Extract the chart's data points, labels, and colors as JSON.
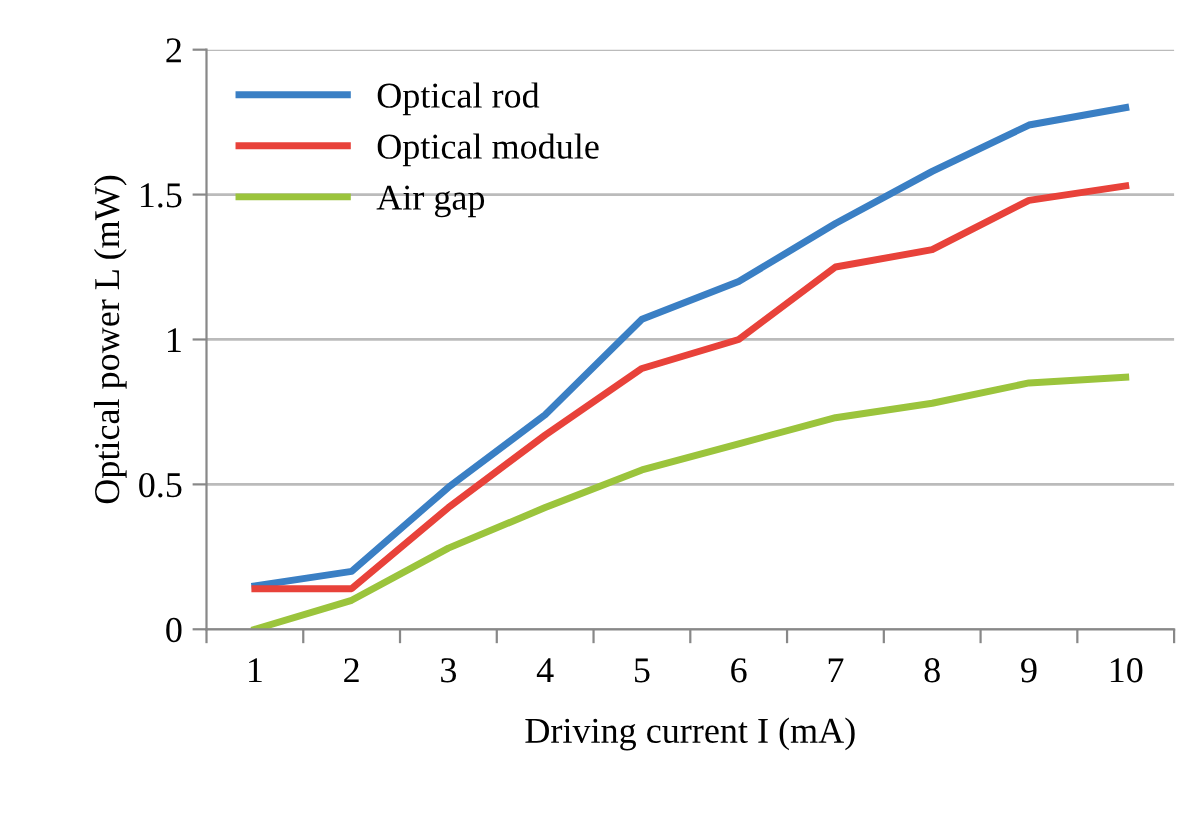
{
  "chart_data": {
    "type": "line",
    "xlabel": "Driving current I (mA)",
    "ylabel": "Optical power L (mW)",
    "categories": [
      "1",
      "2",
      "3",
      "4",
      "5",
      "6",
      "7",
      "8",
      "9",
      "10"
    ],
    "series": [
      {
        "name": "Optical rod",
        "color": "#3a7fc4",
        "values": [
          0.15,
          0.2,
          0.49,
          0.74,
          1.07,
          1.2,
          1.4,
          1.58,
          1.74,
          1.8
        ]
      },
      {
        "name": "Optical module",
        "color": "#e8423a",
        "values": [
          0.14,
          0.14,
          0.42,
          0.67,
          0.9,
          1.0,
          1.25,
          1.31,
          1.48,
          1.53
        ]
      },
      {
        "name": "Air gap",
        "color": "#9bc43c",
        "values": [
          0.0,
          0.1,
          0.28,
          0.42,
          0.55,
          0.64,
          0.73,
          0.78,
          0.85,
          0.87
        ]
      }
    ],
    "ylim": [
      0,
      2
    ],
    "yticks": [
      0,
      0.5,
      1,
      1.5,
      2
    ],
    "grid": "y",
    "legend": "top left",
    "marker": "none",
    "line_style": "solid"
  }
}
